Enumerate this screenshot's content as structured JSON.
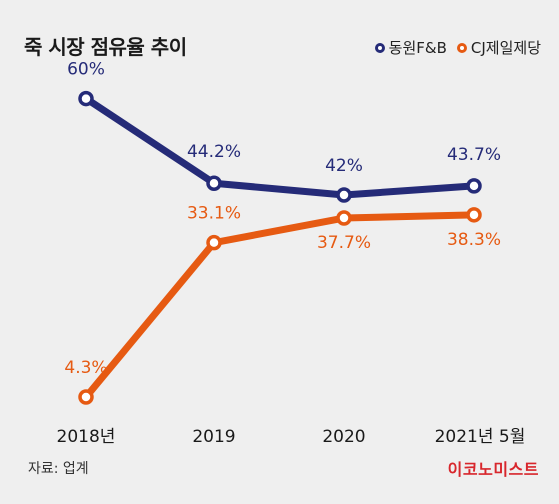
{
  "colors": {
    "background": "#efefef",
    "series_a": "#252b78",
    "series_b": "#e65a12",
    "brand": "#d8262c",
    "axis_text": "#1a1a1a"
  },
  "source": "자료: 업계",
  "brand": "이코노미스트",
  "chart_data": {
    "type": "line",
    "title": "죽 시장 점유율 추이",
    "categories": [
      "2018년",
      "2019",
      "2020",
      "2021년 5월"
    ],
    "ylim": [
      0,
      70
    ],
    "grid": false,
    "legend_position": "top-right",
    "series": [
      {
        "name": "동원F&B",
        "values": [
          60,
          44.2,
          42,
          43.7
        ],
        "labels": [
          "60%",
          "44.2%",
          "42%",
          "43.7%"
        ]
      },
      {
        "name": "CJ제일제당",
        "values": [
          4.3,
          33.1,
          37.7,
          38.3
        ],
        "labels": [
          "4.3%",
          "33.1%",
          "37.7%",
          "38.3%"
        ]
      }
    ]
  }
}
